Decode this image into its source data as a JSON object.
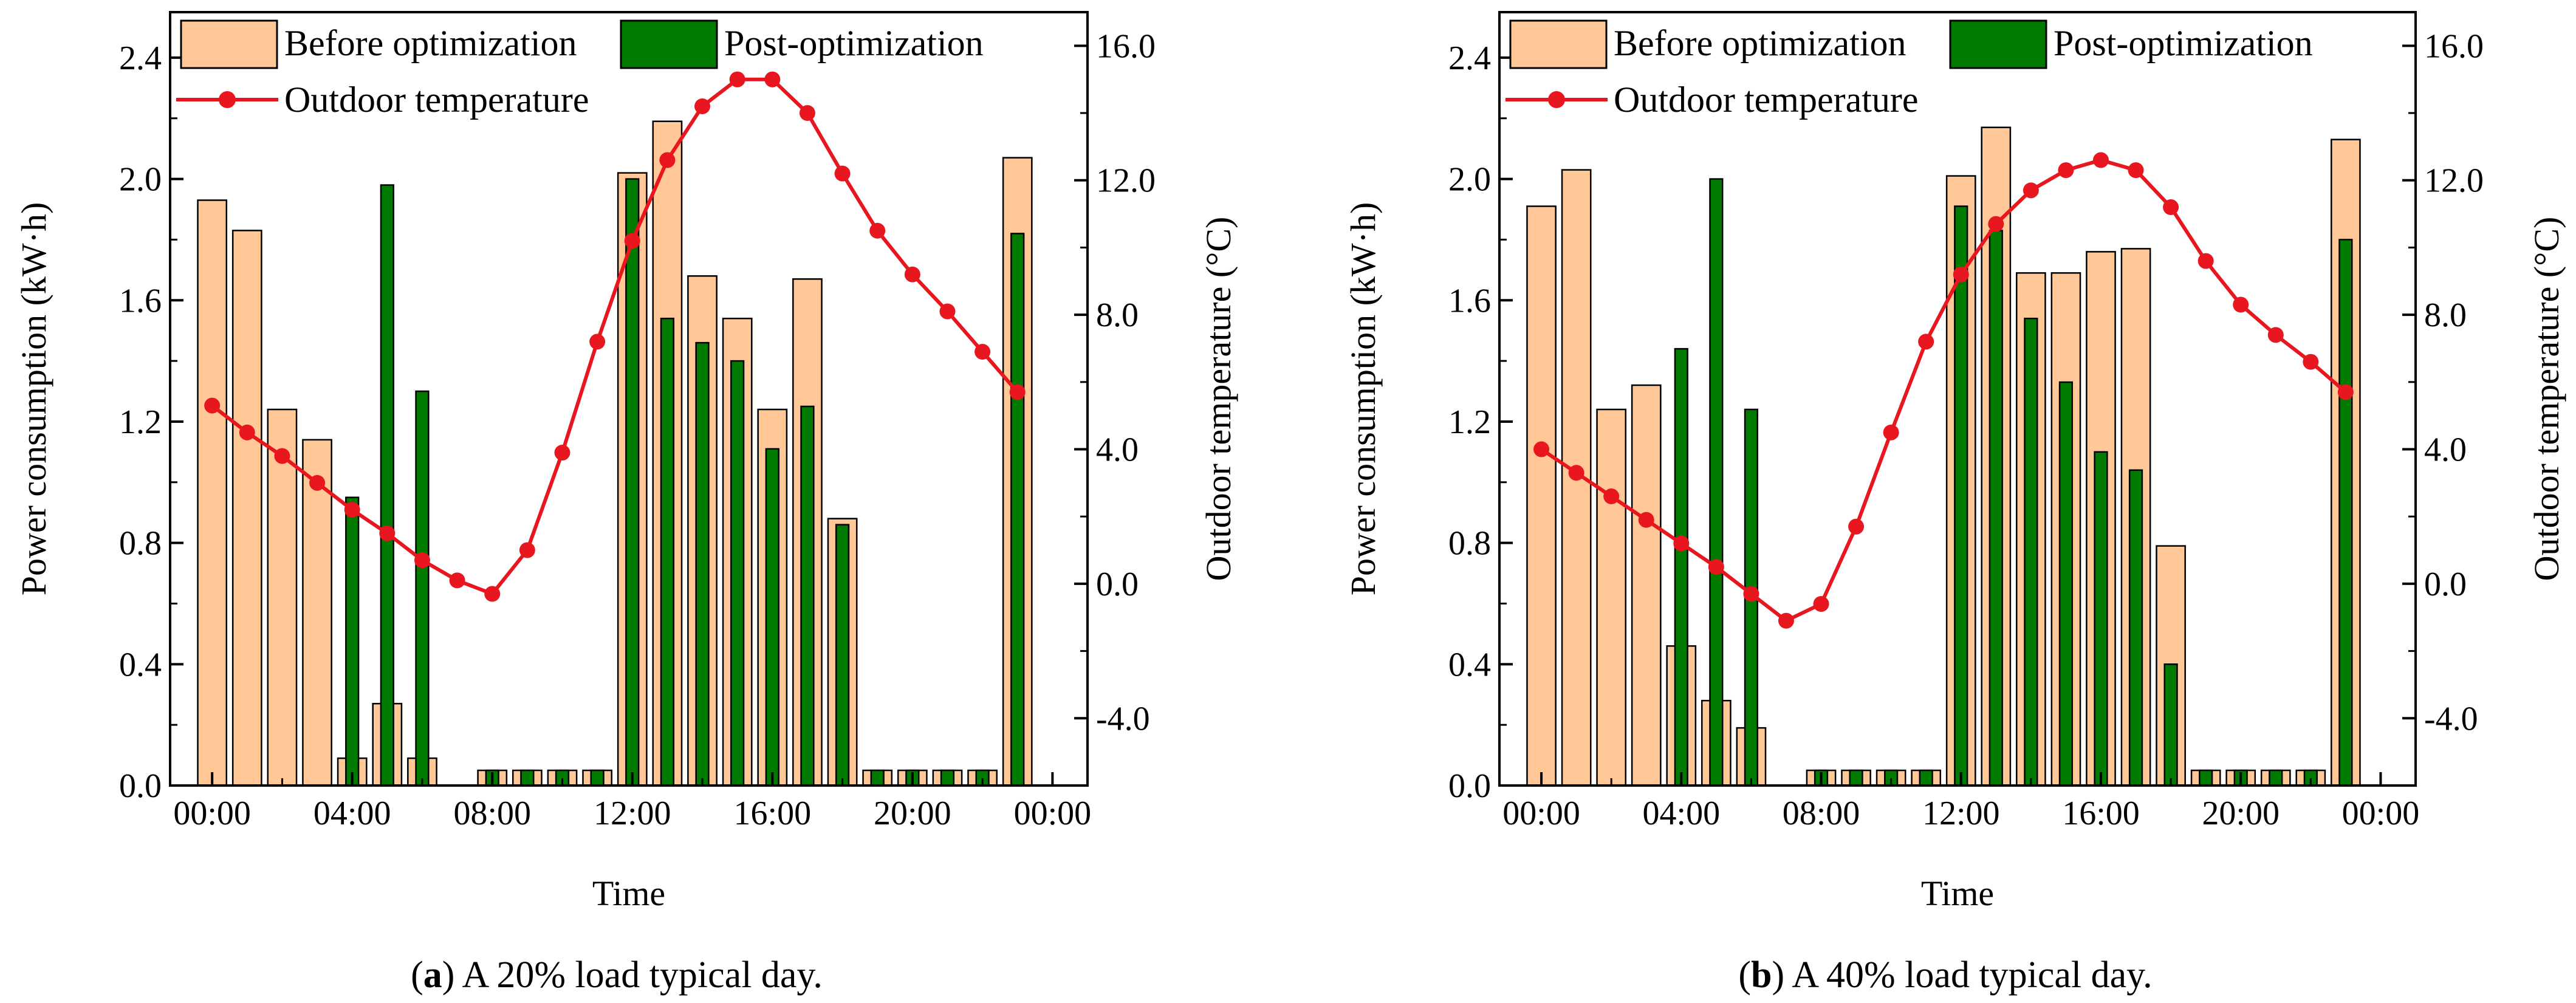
{
  "legend": {
    "before_label": "Before optimization",
    "post_label": "Post-optimization",
    "temp_label": "Outdoor temperature"
  },
  "colors": {
    "before_fill": "#FFC896",
    "post_fill": "#007A00",
    "temp_line": "#E8161E",
    "axis": "#000000"
  },
  "chart_data": [
    {
      "type": "bar",
      "caption_letter": "a",
      "caption_text": " A 20% load typical day.",
      "xlabel": "Time",
      "ylabel": "Power consumption (kW·h)",
      "y2label": "Outdoor temperature (°C)",
      "x_tick_labels": [
        "00:00",
        "04:00",
        "08:00",
        "12:00",
        "16:00",
        "20:00",
        "00:00"
      ],
      "y_ticks": [
        "0.0",
        "0.4",
        "0.8",
        "1.2",
        "1.6",
        "2.0",
        "2.4"
      ],
      "y2_ticks": [
        "-4.0",
        "0.0",
        "4.0",
        "8.0",
        "12.0",
        "16.0"
      ],
      "ylim": [
        0,
        2.55
      ],
      "y2lim": [
        -6,
        17
      ],
      "hours": [
        0,
        1,
        2,
        3,
        4,
        5,
        6,
        7,
        8,
        9,
        10,
        11,
        12,
        13,
        14,
        15,
        16,
        17,
        18,
        19,
        20,
        21,
        22,
        23
      ],
      "series": [
        {
          "name": "Before optimization",
          "values": [
            1.93,
            1.83,
            1.24,
            1.14,
            0.09,
            0.27,
            0.09,
            0.0,
            0.05,
            0.05,
            0.05,
            0.05,
            2.02,
            2.19,
            1.68,
            1.54,
            1.24,
            1.67,
            0.88,
            0.05,
            0.05,
            0.05,
            0.05,
            2.07
          ]
        },
        {
          "name": "Post-optimization",
          "values": [
            0.0,
            0.0,
            0.0,
            0.0,
            0.95,
            1.98,
            1.3,
            0.0,
            0.05,
            0.05,
            0.05,
            0.05,
            2.0,
            1.54,
            1.46,
            1.4,
            1.11,
            1.25,
            0.86,
            0.05,
            0.05,
            0.05,
            0.05,
            1.82
          ]
        },
        {
          "name": "Outdoor temperature",
          "values": [
            5.3,
            4.5,
            3.8,
            3.0,
            2.2,
            1.5,
            0.7,
            0.1,
            -0.3,
            1.0,
            3.9,
            7.2,
            10.2,
            12.6,
            14.2,
            15.0,
            15.0,
            14.0,
            12.2,
            10.5,
            9.2,
            8.1,
            6.9,
            5.7
          ]
        }
      ]
    },
    {
      "type": "bar",
      "caption_letter": "b",
      "caption_text": " A 40% load typical day.",
      "xlabel": "Time",
      "ylabel": "Power consumption (kW·h)",
      "y2label": "Outdoor temperature (°C)",
      "x_tick_labels": [
        "00:00",
        "04:00",
        "08:00",
        "12:00",
        "16:00",
        "20:00",
        "00:00"
      ],
      "y_ticks": [
        "0.0",
        "0.4",
        "0.8",
        "1.2",
        "1.6",
        "2.0",
        "2.4"
      ],
      "y2_ticks": [
        "-4.0",
        "0.0",
        "4.0",
        "8.0",
        "12.0",
        "16.0"
      ],
      "ylim": [
        0,
        2.55
      ],
      "y2lim": [
        -6,
        17
      ],
      "hours": [
        0,
        1,
        2,
        3,
        4,
        5,
        6,
        7,
        8,
        9,
        10,
        11,
        12,
        13,
        14,
        15,
        16,
        17,
        18,
        19,
        20,
        21,
        22,
        23
      ],
      "series": [
        {
          "name": "Before optimization",
          "values": [
            1.91,
            2.03,
            1.24,
            1.32,
            0.46,
            0.28,
            0.19,
            0.0,
            0.05,
            0.05,
            0.05,
            0.05,
            2.01,
            2.17,
            1.69,
            1.69,
            1.76,
            1.77,
            0.79,
            0.05,
            0.05,
            0.05,
            0.05,
            2.13
          ]
        },
        {
          "name": "Post-optimization",
          "values": [
            0.0,
            0.0,
            0.0,
            0.0,
            1.44,
            2.0,
            1.24,
            0.0,
            0.05,
            0.05,
            0.05,
            0.05,
            1.91,
            1.83,
            1.54,
            1.33,
            1.1,
            1.04,
            0.4,
            0.05,
            0.05,
            0.05,
            0.05,
            1.8
          ]
        },
        {
          "name": "Outdoor temperature",
          "values": [
            4.0,
            3.3,
            2.6,
            1.9,
            1.2,
            0.5,
            -0.3,
            -1.1,
            -0.6,
            1.7,
            4.5,
            7.2,
            9.2,
            10.7,
            11.7,
            12.3,
            12.6,
            12.3,
            11.2,
            9.6,
            8.3,
            7.4,
            6.6,
            5.7
          ]
        }
      ]
    }
  ]
}
